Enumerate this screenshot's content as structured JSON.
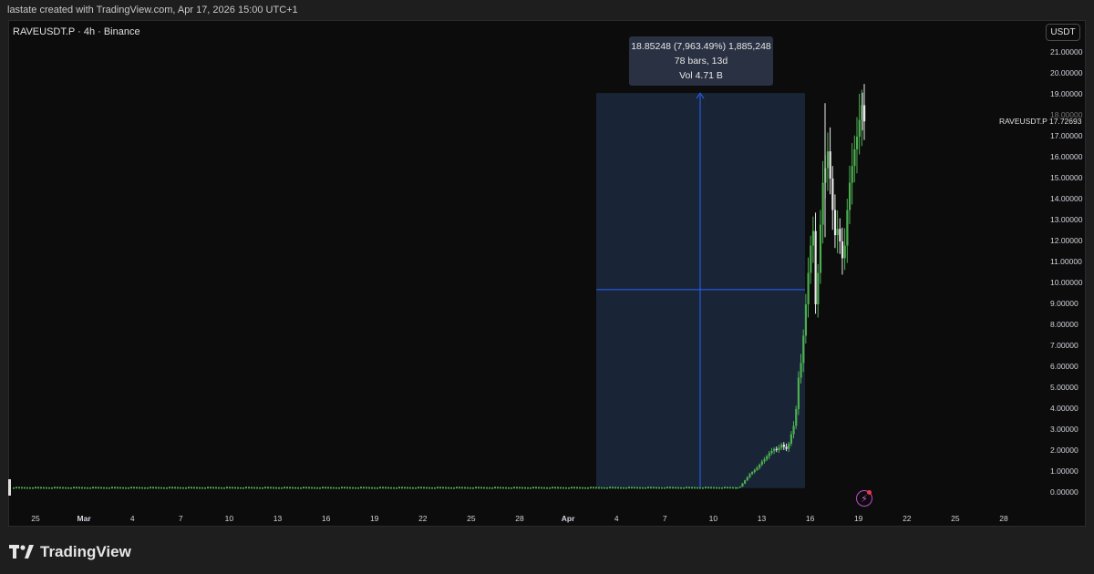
{
  "header": {
    "attribution": "lastate created with TradingView.com, Apr 17, 2026 15:00 UTC+1"
  },
  "chart": {
    "symbol_line": "RAVEUSDT.P · 4h · Binance",
    "currency_button": "USDT",
    "last_price_label": "RAVEUSDT.P",
    "last_price_value": "17.72693",
    "measure_tooltip": {
      "line1": "18.85248 (7,963.49%) 1,885,248",
      "line2": "78 bars, 13d",
      "line3": "Vol 4.71 B"
    },
    "colors": {
      "up": "#4caf50",
      "down": "#e8e8e8",
      "measure": "#2962ff",
      "background": "#0c0c0c"
    }
  },
  "chart_data": {
    "type": "candlestick",
    "title": "",
    "ylim": [
      0,
      21
    ],
    "y_ticks": [
      "21.00000",
      "20.00000",
      "19.00000",
      "18.00000",
      "17.00000",
      "16.00000",
      "15.00000",
      "14.00000",
      "13.00000",
      "12.00000",
      "11.00000",
      "10.00000",
      "9.00000",
      "8.00000",
      "7.00000",
      "6.00000",
      "5.00000",
      "4.00000",
      "3.00000",
      "2.00000",
      "1.00000",
      "0.00000"
    ],
    "y_tick_values": [
      21,
      20,
      19,
      18,
      17,
      16,
      15,
      14,
      13,
      12,
      11,
      10,
      9,
      8,
      7,
      6,
      5,
      4,
      3,
      2,
      1,
      0
    ],
    "x_ticks": [
      {
        "label": "25",
        "bold": false
      },
      {
        "label": "Mar",
        "bold": true
      },
      {
        "label": "4",
        "bold": false
      },
      {
        "label": "7",
        "bold": false
      },
      {
        "label": "10",
        "bold": false
      },
      {
        "label": "13",
        "bold": false
      },
      {
        "label": "16",
        "bold": false
      },
      {
        "label": "19",
        "bold": false
      },
      {
        "label": "22",
        "bold": false
      },
      {
        "label": "25",
        "bold": false
      },
      {
        "label": "28",
        "bold": false
      },
      {
        "label": "Apr",
        "bold": true
      },
      {
        "label": "4",
        "bold": false
      },
      {
        "label": "7",
        "bold": false
      },
      {
        "label": "10",
        "bold": false
      },
      {
        "label": "13",
        "bold": false
      },
      {
        "label": "16",
        "bold": false
      },
      {
        "label": "19",
        "bold": false
      },
      {
        "label": "22",
        "bold": false
      },
      {
        "label": "25",
        "bold": false
      },
      {
        "label": "28",
        "bold": false
      }
    ],
    "flat_level": 0.22,
    "measure_range": {
      "from_price": 0.23,
      "to_price": 19.08,
      "mid_price": 9.7
    },
    "rally_closes": [
      0.25,
      0.3,
      0.45,
      0.6,
      0.75,
      0.9,
      1.0,
      1.1,
      1.2,
      1.35,
      1.5,
      1.6,
      1.75,
      1.9,
      2.0,
      2.1,
      2.05,
      2.15,
      2.3,
      2.2,
      2.1,
      2.35,
      2.8,
      3.2,
      4.0,
      5.5,
      6.2,
      7.5,
      9.0,
      10.5,
      11.8,
      12.5,
      9.0,
      10.5,
      12.8,
      14.8,
      15.5,
      16.3,
      15.0,
      13.5,
      12.3,
      12.6,
      12.0,
      11.2,
      11.8,
      13.5,
      14.8,
      15.6,
      16.4,
      17.0,
      17.8,
      18.5,
      17.73
    ],
    "last_price": 17.72693
  }
}
